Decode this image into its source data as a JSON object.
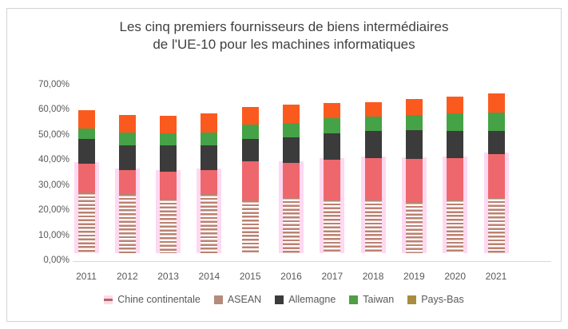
{
  "title": {
    "line1": "Les cinq premiers fournisseurs de biens intermédiaires",
    "line2": "de l'UE-10 pour les machines informatiques"
  },
  "y_axis": {
    "labels": [
      "70,00%",
      "60,00%",
      "50,00%",
      "40,00%",
      "30,00%",
      "20,00%",
      "10,00%",
      "0,00%"
    ],
    "min": 0,
    "max": 70
  },
  "x_axis": {
    "categories": [
      "2011",
      "2012",
      "2013",
      "2014",
      "2015",
      "2016",
      "2017",
      "2018",
      "2019",
      "2020",
      "2021"
    ]
  },
  "legend": [
    {
      "label": "Chine continentale",
      "swatch": "striped"
    },
    {
      "label": "ASEAN",
      "swatch": "#b58b7b"
    },
    {
      "label": "Allemagne",
      "swatch": "#3b3b3b"
    },
    {
      "label": "Taiwan",
      "swatch": "#4f9f43"
    },
    {
      "label": "Pays-Bas",
      "swatch": "#a68d3f"
    }
  ],
  "colors": {
    "chine_stripe": "#bc8171",
    "asean": "#ee676c",
    "allemagne": "#3b3b3b",
    "taiwan": "#45a247",
    "pays_bas": "#fb5a1f",
    "pink_band": "rgba(255,163,221,0.42)",
    "axis_line": "#d9d9d9",
    "text": "#595959",
    "title_text": "#3f3f3f"
  },
  "chart_data": {
    "type": "bar",
    "stacked": true,
    "title": "Les cinq premiers fournisseurs de biens intermédiaires de l'UE-10 pour les machines informatiques",
    "xlabel": "",
    "ylabel": "",
    "ylim": [
      0,
      70
    ],
    "y_tick_format": "percent-fr",
    "grid": false,
    "legend_position": "bottom",
    "categories": [
      "2011",
      "2012",
      "2013",
      "2014",
      "2015",
      "2016",
      "2017",
      "2018",
      "2019",
      "2020",
      "2021"
    ],
    "series": [
      {
        "name": "Chine continentale",
        "fill": "striped",
        "values": [
          24.3,
          23.4,
          21.8,
          23.5,
          21.0,
          22.3,
          21.3,
          21.3,
          20.3,
          21.3,
          22.2
        ]
      },
      {
        "name": "ASEAN",
        "fill": "solid",
        "values": [
          11.2,
          9.8,
          10.8,
          9.7,
          15.5,
          13.7,
          16.0,
          16.7,
          17.2,
          16.7,
          17.3
        ]
      },
      {
        "name": "Allemagne",
        "fill": "solid",
        "values": [
          10.1,
          9.7,
          10.3,
          9.7,
          9.1,
          10.1,
          10.5,
          10.6,
          11.6,
          10.8,
          9.3
        ]
      },
      {
        "name": "Taiwan",
        "fill": "solid",
        "values": [
          4.0,
          5.2,
          4.9,
          5.2,
          5.6,
          5.8,
          5.9,
          5.9,
          6.1,
          6.9,
          7.1
        ]
      },
      {
        "name": "Pays-Bas",
        "fill": "solid",
        "values": [
          7.3,
          7.1,
          7.1,
          7.6,
          7.1,
          7.4,
          6.1,
          5.8,
          6.1,
          6.8,
          7.6
        ]
      }
    ],
    "totals": [
      56.9,
      55.2,
      54.9,
      55.7,
      58.3,
      59.3,
      59.8,
      60.3,
      61.3,
      62.5,
      63.5
    ],
    "pink_background_band": {
      "top_equals": "Chine continentale + ASEAN cumulative",
      "visible_years": [
        "2011",
        "2012",
        "2013",
        "2014",
        "2016",
        "2017",
        "2018",
        "2019",
        "2020",
        "2021"
      ]
    }
  }
}
